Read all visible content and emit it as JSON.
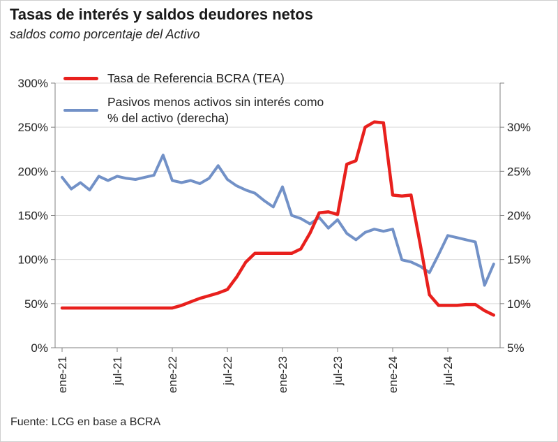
{
  "chart_data": {
    "type": "line",
    "title": "Tasas de interés y saldos deudores netos",
    "subtitle": "saldos como porcentaje del Activo",
    "x_unit": "month",
    "n_points": 48,
    "x_range": [
      "ene-21",
      "dic-24"
    ],
    "x_tick_labels": [
      "ene-21",
      "jul-21",
      "ene-22",
      "jul-22",
      "ene-23",
      "jul-23",
      "ene-24",
      "jul-24"
    ],
    "x_tick_indices": [
      0,
      6,
      12,
      18,
      24,
      30,
      36,
      42
    ],
    "axes": {
      "left": {
        "min": 0,
        "max": 300,
        "tick_labels": [
          "0%",
          "50%",
          "100%",
          "150%",
          "200%",
          "250%",
          "300%"
        ]
      },
      "right": {
        "min": 5,
        "max": 30,
        "tick_labels": [
          "5%",
          "10%",
          "15%",
          "20%",
          "25%",
          "30%"
        ]
      }
    },
    "grid": "horizontal",
    "legend_position": "top-left-inside",
    "colors": {
      "reference_rate": "#e8201d",
      "net_liabilities": "#7291c7",
      "gridline": "#d9d9d9",
      "axis": "#808080",
      "text": "#262626"
    },
    "series": [
      {
        "name": "Tasa de Referencia BCRA (TEA)",
        "axis": "left",
        "color": "#e8201d",
        "stroke_width": 4.5,
        "values": [
          45,
          45,
          45,
          45,
          45,
          45,
          45,
          45,
          45,
          45,
          45,
          45,
          45,
          48,
          52,
          56,
          59,
          62,
          66,
          80,
          97,
          107,
          107,
          107,
          107,
          107,
          112,
          130,
          153,
          154,
          151,
          208,
          212,
          250,
          256,
          255,
          173,
          172,
          173,
          117,
          60,
          48,
          48,
          48,
          49,
          49,
          42,
          37
        ]
      },
      {
        "name": "Pasivos menos activos sin interés como % del activo (derecha)",
        "axis": "right",
        "color": "#7291c7",
        "stroke_width": 4,
        "values": [
          21.1,
          20.0,
          20.6,
          19.9,
          21.2,
          20.8,
          21.2,
          21.0,
          20.9,
          21.1,
          21.3,
          23.2,
          20.8,
          20.6,
          20.8,
          20.5,
          21.0,
          22.2,
          20.9,
          20.3,
          19.9,
          19.6,
          18.9,
          18.3,
          20.2,
          17.5,
          17.2,
          16.7,
          17.3,
          16.3,
          17.1,
          15.8,
          15.2,
          15.9,
          16.2,
          16.0,
          16.2,
          13.3,
          13.1,
          12.7,
          12.1,
          13.8,
          15.6,
          15.4,
          15.2,
          15.0,
          10.9,
          12.9
        ]
      }
    ]
  },
  "footer": {
    "source": "Fuente: LCG en base a BCRA"
  }
}
